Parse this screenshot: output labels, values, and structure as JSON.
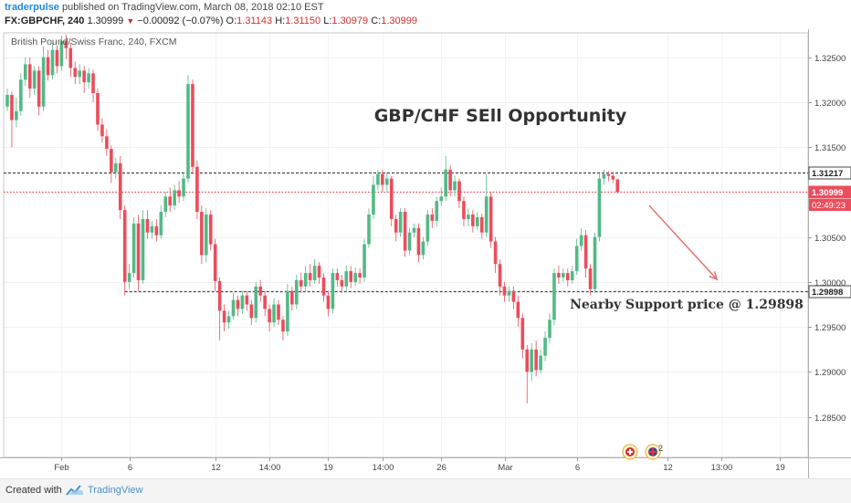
{
  "header": {
    "username": "traderpulse",
    "published_text": " published on TradingView.com, March 08, 2018 02:10 EST",
    "symbol": "FX:GBPCHF, 240",
    "last": "1.30999",
    "change": "−0.00092 (−0.07%)",
    "open_label": "O:",
    "open": "1.31143",
    "high_label": "H:",
    "high": "1.31150",
    "low_label": "L:",
    "low": "1.30979",
    "close_label": "C:",
    "close": "1.30999"
  },
  "footer": {
    "created_with": "Created with",
    "brand": "TradingView"
  },
  "colors": {
    "up": "#53b987",
    "down": "#eb4d5c",
    "resistance_line": "#444444",
    "price_line": "#eb4d5c",
    "arrow": "#e57373"
  },
  "icons": [
    "tradingview-logo-icon",
    "red-cross-event-icon",
    "uk-flag-event-icon"
  ],
  "chart_data": {
    "type": "candlestick",
    "instrument_label": "British Pound/Swiss Franc, 240, FXCM",
    "annotation_title": "GBP/CHF SEll Opportunity",
    "annotation_support": "Nearby Support price @ 1.29898",
    "event_badge_count": "2",
    "y_axis": {
      "range": [
        1.2805,
        1.3277
      ],
      "ticks": [
        {
          "value": 1.325,
          "label": "1.32500"
        },
        {
          "value": 1.32,
          "label": "1.32000"
        },
        {
          "value": 1.315,
          "label": "1.31500"
        },
        {
          "value": 1.31,
          "label": "1.31000"
        },
        {
          "value": 1.305,
          "label": "1.30500"
        },
        {
          "value": 1.3,
          "label": "1.30000"
        },
        {
          "value": 1.295,
          "label": "1.29500"
        },
        {
          "value": 1.29,
          "label": "1.29000"
        },
        {
          "value": 1.285,
          "label": "1.28500"
        }
      ]
    },
    "x_axis": {
      "ticks": [
        {
          "label": "Feb",
          "bar": 12
        },
        {
          "label": "6",
          "bar": 27
        },
        {
          "label": "12",
          "bar": 46
        },
        {
          "label": "14:00",
          "bar": 58
        },
        {
          "label": "19",
          "bar": 71
        },
        {
          "label": "14:00",
          "bar": 83
        },
        {
          "label": "26",
          "bar": 96
        },
        {
          "label": "Mar",
          "bar": 110
        },
        {
          "label": "6",
          "bar": 126
        },
        {
          "label": "12",
          "bar": 146
        },
        {
          "label": "13:00",
          "bar": 158
        },
        {
          "label": "19",
          "bar": 171
        }
      ]
    },
    "horizontal_lines": [
      {
        "value": 1.31217,
        "label": "1.31217",
        "style": "dashed",
        "color": "#444444",
        "from_bar": 0
      },
      {
        "value": 1.30999,
        "label": "1.30999",
        "style": "dotted",
        "color": "#eb4d5c",
        "from_bar": 0
      },
      {
        "value": 1.29898,
        "label": "1.29898",
        "style": "dashed",
        "color": "#444444",
        "from_bar": 26
      }
    ],
    "countdown_label": "02:49:23",
    "projection_arrow": {
      "from_bar": 142,
      "from_price": 1.3085,
      "to_bar": 157,
      "to_price": 1.3003
    },
    "candles": [
      [
        1.3195,
        1.3208,
        1.319,
        1.3215
      ],
      [
        1.3208,
        1.318,
        1.315,
        1.3212
      ],
      [
        1.318,
        1.319,
        1.3172,
        1.3205
      ],
      [
        1.319,
        1.3225,
        1.3185,
        1.3232
      ],
      [
        1.3225,
        1.3242,
        1.3218,
        1.325
      ],
      [
        1.3242,
        1.3215,
        1.3205,
        1.325
      ],
      [
        1.3215,
        1.3235,
        1.3208,
        1.324
      ],
      [
        1.3235,
        1.3195,
        1.3185,
        1.324
      ],
      [
        1.3195,
        1.325,
        1.319,
        1.3262
      ],
      [
        1.325,
        1.323,
        1.3224,
        1.3258
      ],
      [
        1.323,
        1.3258,
        1.3225,
        1.3266
      ],
      [
        1.3258,
        1.324,
        1.3232,
        1.3263
      ],
      [
        1.324,
        1.3268,
        1.3235,
        1.3274
      ],
      [
        1.3268,
        1.326,
        1.3248,
        1.3275
      ],
      [
        1.326,
        1.3238,
        1.3228,
        1.3266
      ],
      [
        1.3238,
        1.3228,
        1.322,
        1.3245
      ],
      [
        1.3228,
        1.3235,
        1.322,
        1.3242
      ],
      [
        1.3235,
        1.3222,
        1.321,
        1.324
      ],
      [
        1.3222,
        1.3232,
        1.3215,
        1.3238
      ],
      [
        1.3232,
        1.321,
        1.32,
        1.3236
      ],
      [
        1.321,
        1.3175,
        1.3168,
        1.3215
      ],
      [
        1.3175,
        1.3162,
        1.3155,
        1.3182
      ],
      [
        1.3162,
        1.3148,
        1.314,
        1.317
      ],
      [
        1.3148,
        1.3122,
        1.311,
        1.3152
      ],
      [
        1.3122,
        1.3132,
        1.3115,
        1.3138
      ],
      [
        1.3132,
        1.308,
        1.307,
        1.314
      ],
      [
        1.308,
        1.3,
        1.2985,
        1.3085
      ],
      [
        1.3,
        1.301,
        1.2992,
        1.302
      ],
      [
        1.301,
        1.3065,
        1.3005,
        1.3072
      ],
      [
        1.3065,
        1.3002,
        1.299,
        1.3075
      ],
      [
        1.3002,
        1.307,
        1.2998,
        1.308
      ],
      [
        1.307,
        1.3055,
        1.3048,
        1.308
      ],
      [
        1.3055,
        1.3062,
        1.3048,
        1.3068
      ],
      [
        1.3062,
        1.3052,
        1.3045,
        1.307
      ],
      [
        1.3052,
        1.3078,
        1.3048,
        1.3085
      ],
      [
        1.3078,
        1.3095,
        1.3072,
        1.31
      ],
      [
        1.3095,
        1.3085,
        1.3078,
        1.3105
      ],
      [
        1.3085,
        1.3102,
        1.308,
        1.3108
      ],
      [
        1.3102,
        1.3095,
        1.3088,
        1.3112
      ],
      [
        1.3095,
        1.3115,
        1.309,
        1.312
      ],
      [
        1.3115,
        1.322,
        1.311,
        1.323
      ],
      [
        1.322,
        1.3128,
        1.312,
        1.3225
      ],
      [
        1.3128,
        1.3078,
        1.307,
        1.3135
      ],
      [
        1.3078,
        1.303,
        1.302,
        1.3085
      ],
      [
        1.303,
        1.3075,
        1.3022,
        1.3082
      ],
      [
        1.3075,
        1.3042,
        1.3035,
        1.308
      ],
      [
        1.3042,
        1.3001,
        1.299,
        1.3048
      ],
      [
        1.3001,
        1.2968,
        1.2935,
        1.3005
      ],
      [
        1.2968,
        1.2955,
        1.2945,
        1.2975
      ],
      [
        1.2955,
        1.2962,
        1.2948,
        1.2968
      ],
      [
        1.2962,
        1.298,
        1.2958,
        1.2988
      ],
      [
        1.298,
        1.297,
        1.2962,
        1.2985
      ],
      [
        1.297,
        1.2985,
        1.2965,
        1.299
      ],
      [
        1.2985,
        1.2975,
        1.2968,
        1.299
      ],
      [
        1.2975,
        1.296,
        1.2952,
        1.298
      ],
      [
        1.296,
        1.2995,
        1.2955,
        1.3
      ],
      [
        1.2995,
        1.2985,
        1.2978,
        1.3002
      ],
      [
        1.2985,
        1.297,
        1.2962,
        1.299
      ],
      [
        1.297,
        1.2955,
        1.2945,
        1.2975
      ],
      [
        1.2955,
        1.2975,
        1.295,
        1.2982
      ],
      [
        1.2975,
        1.2958,
        1.2952,
        1.298
      ],
      [
        1.2958,
        1.2945,
        1.2935,
        1.2962
      ],
      [
        1.2945,
        1.299,
        1.294,
        1.2998
      ],
      [
        1.299,
        1.2975,
        1.2968,
        1.2995
      ],
      [
        1.2975,
        1.3002,
        1.297,
        1.3008
      ],
      [
        1.3002,
        1.2995,
        1.2988,
        1.301
      ],
      [
        1.2995,
        1.301,
        1.299,
        1.3018
      ],
      [
        1.301,
        1.3002,
        1.2995,
        1.302
      ],
      [
        1.3002,
        1.3018,
        1.2998,
        1.3025
      ],
      [
        1.3018,
        1.3005,
        1.2998,
        1.3022
      ],
      [
        1.3005,
        1.2985,
        1.2978,
        1.301
      ],
      [
        1.2985,
        1.297,
        1.2962,
        1.299
      ],
      [
        1.297,
        1.301,
        1.2965,
        1.3015
      ],
      [
        1.301,
        1.3002,
        1.2995,
        1.3015
      ],
      [
        1.3002,
        1.2995,
        1.2988,
        1.3008
      ],
      [
        1.2995,
        1.3012,
        1.299,
        1.3018
      ],
      [
        1.3012,
        1.3,
        1.2993,
        1.3018
      ],
      [
        1.3,
        1.301,
        1.2995,
        1.3016
      ],
      [
        1.301,
        1.3005,
        1.2998,
        1.3015
      ],
      [
        1.3005,
        1.3042,
        1.3,
        1.3048
      ],
      [
        1.3042,
        1.3075,
        1.3038,
        1.3082
      ],
      [
        1.3075,
        1.3108,
        1.307,
        1.3118
      ],
      [
        1.3108,
        1.312,
        1.3102,
        1.3125
      ],
      [
        1.312,
        1.3108,
        1.31,
        1.3125
      ],
      [
        1.3108,
        1.3115,
        1.31,
        1.3122
      ],
      [
        1.3115,
        1.307,
        1.3062,
        1.3118
      ],
      [
        1.307,
        1.3055,
        1.3045,
        1.3075
      ],
      [
        1.3055,
        1.3078,
        1.305,
        1.3082
      ],
      [
        1.3078,
        1.3035,
        1.3028,
        1.3082
      ],
      [
        1.3035,
        1.3055,
        1.303,
        1.306
      ],
      [
        1.3055,
        1.306,
        1.305,
        1.3065
      ],
      [
        1.306,
        1.303,
        1.3022,
        1.3065
      ],
      [
        1.303,
        1.3045,
        1.3025,
        1.305
      ],
      [
        1.3045,
        1.3075,
        1.304,
        1.308
      ],
      [
        1.3075,
        1.3068,
        1.306,
        1.3082
      ],
      [
        1.3068,
        1.309,
        1.3062,
        1.3095
      ],
      [
        1.309,
        1.3095,
        1.3085,
        1.3105
      ],
      [
        1.3095,
        1.3125,
        1.309,
        1.314
      ],
      [
        1.3125,
        1.3102,
        1.3095,
        1.313
      ],
      [
        1.3102,
        1.3112,
        1.3095,
        1.3118
      ],
      [
        1.3112,
        1.309,
        1.3082,
        1.3115
      ],
      [
        1.309,
        1.307,
        1.3062,
        1.3095
      ],
      [
        1.307,
        1.3075,
        1.3062,
        1.3082
      ],
      [
        1.3075,
        1.3062,
        1.3055,
        1.308
      ],
      [
        1.3062,
        1.3072,
        1.3058,
        1.3078
      ],
      [
        1.3072,
        1.3055,
        1.3048,
        1.3076
      ],
      [
        1.3055,
        1.3095,
        1.305,
        1.312
      ],
      [
        1.3095,
        1.3045,
        1.3038,
        1.31
      ],
      [
        1.3045,
        1.302,
        1.301,
        1.305
      ],
      [
        1.302,
        1.2995,
        1.2985,
        1.3025
      ],
      [
        1.2995,
        1.2985,
        1.2978,
        1.3
      ],
      [
        1.2985,
        1.299,
        1.2978,
        1.2995
      ],
      [
        1.299,
        1.2978,
        1.297,
        1.2995
      ],
      [
        1.2978,
        1.296,
        1.295,
        1.2985
      ],
      [
        1.296,
        1.2925,
        1.2915,
        1.2965
      ],
      [
        1.2925,
        1.29,
        1.2865,
        1.293
      ],
      [
        1.29,
        1.2925,
        1.289,
        1.2932
      ],
      [
        1.2925,
        1.2902,
        1.2895,
        1.2935
      ],
      [
        1.2902,
        1.2918,
        1.2898,
        1.2925
      ],
      [
        1.2918,
        1.2938,
        1.2912,
        1.2945
      ],
      [
        1.2938,
        1.2958,
        1.2932,
        1.2965
      ],
      [
        1.2958,
        1.301,
        1.2952,
        1.3015
      ],
      [
        1.301,
        1.3005,
        1.2998,
        1.3018
      ],
      [
        1.3005,
        1.301,
        1.3,
        1.3015
      ],
      [
        1.301,
        1.3002,
        1.2995,
        1.3015
      ],
      [
        1.3002,
        1.3012,
        1.2998,
        1.3018
      ],
      [
        1.3012,
        1.304,
        1.3008,
        1.3048
      ],
      [
        1.304,
        1.3052,
        1.3035,
        1.306
      ],
      [
        1.3052,
        1.3015,
        1.3005,
        1.3058
      ],
      [
        1.3015,
        1.2992,
        1.2985,
        1.302
      ],
      [
        1.2992,
        1.305,
        1.2988,
        1.3055
      ],
      [
        1.305,
        1.3115,
        1.3045,
        1.312
      ],
      [
        1.3115,
        1.312,
        1.3108,
        1.3125
      ],
      [
        1.312,
        1.3118,
        1.3112,
        1.3123
      ],
      [
        1.3118,
        1.3114,
        1.311,
        1.3123
      ],
      [
        1.3114,
        1.31,
        1.3098,
        1.3115
      ]
    ]
  }
}
